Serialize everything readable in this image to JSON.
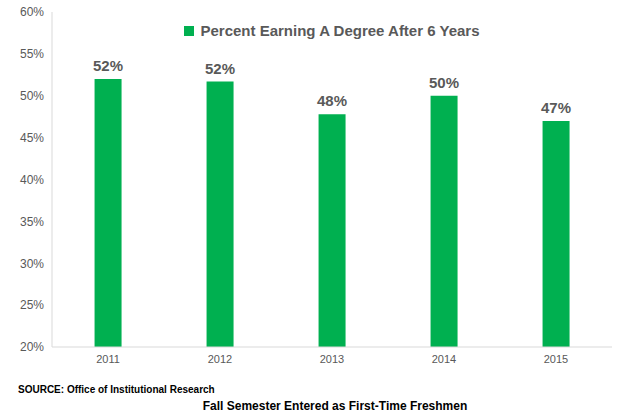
{
  "chart_data": {
    "type": "bar",
    "x_label": "Fall Semester Entered as First-Time Freshmen",
    "annotations": [
      "SOURCE: Office of Institutional Research"
    ],
    "categories": [
      "2011",
      "2012",
      "2013",
      "2014",
      "2015"
    ],
    "series": [
      {
        "name": "Percent Earning A Degree After 6 Years",
        "color": "#00b050",
        "values": [
          52.0,
          51.7,
          47.8,
          50.0,
          47.0
        ],
        "value_labels": [
          "52%",
          "52%",
          "48%",
          "50%",
          "47%"
        ]
      }
    ],
    "ylim": [
      20,
      60
    ],
    "yticks": [
      {
        "value": 20,
        "label": "20%"
      },
      {
        "value": 25,
        "label": "25%"
      },
      {
        "value": 30,
        "label": "30%"
      },
      {
        "value": 35,
        "label": "35%"
      },
      {
        "value": 40,
        "label": "40%"
      },
      {
        "value": 45,
        "label": "45%"
      },
      {
        "value": 50,
        "label": "50%"
      },
      {
        "value": 55,
        "label": "55%"
      },
      {
        "value": 60,
        "label": "60%"
      }
    ],
    "grid": false,
    "legend": "top",
    "data_labels": true
  }
}
